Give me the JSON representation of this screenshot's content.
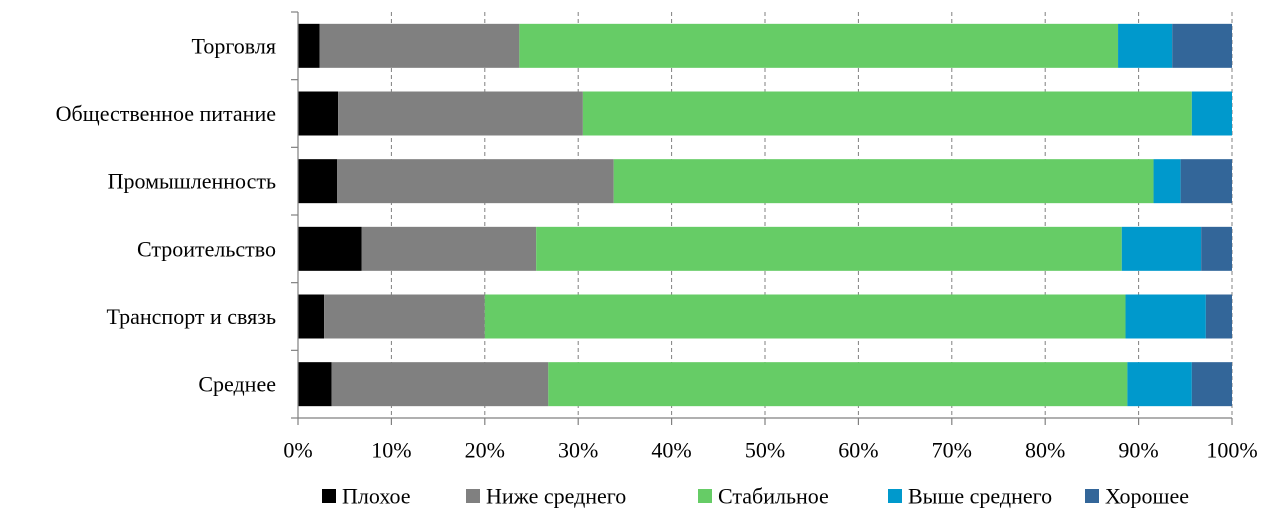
{
  "chart_data": {
    "type": "bar",
    "orientation": "horizontal",
    "stacked": "percent",
    "categories": [
      "Торговля",
      "Общественное питание",
      "Промышленность",
      "Строительство",
      "Транспорт и связь",
      "Среднее"
    ],
    "series": [
      {
        "name": "Плохое",
        "color": "#000000",
        "values": [
          2.3,
          4.3,
          4.2,
          6.8,
          2.8,
          3.6
        ]
      },
      {
        "name": "Ниже среднего",
        "color": "#808080",
        "values": [
          21.4,
          26.2,
          29.6,
          18.7,
          17.2,
          23.2
        ]
      },
      {
        "name": "Стабильное",
        "color": "#66cc66",
        "values": [
          64.1,
          65.2,
          57.8,
          62.7,
          68.6,
          62.0
        ]
      },
      {
        "name": "Выше среднего",
        "color": "#0099cc",
        "values": [
          5.8,
          4.3,
          2.9,
          8.5,
          8.6,
          6.9
        ]
      },
      {
        "name": "Хорошее",
        "color": "#336699",
        "values": [
          6.4,
          0,
          5.5,
          3.3,
          2.8,
          4.3
        ]
      }
    ],
    "x_ticks": [
      "0%",
      "10%",
      "20%",
      "30%",
      "40%",
      "50%",
      "60%",
      "70%",
      "80%",
      "90%",
      "100%"
    ],
    "xlim": [
      0,
      100
    ],
    "grid": "vertical dashed",
    "legend_position": "bottom",
    "title": "",
    "xlabel": "",
    "ylabel": ""
  }
}
